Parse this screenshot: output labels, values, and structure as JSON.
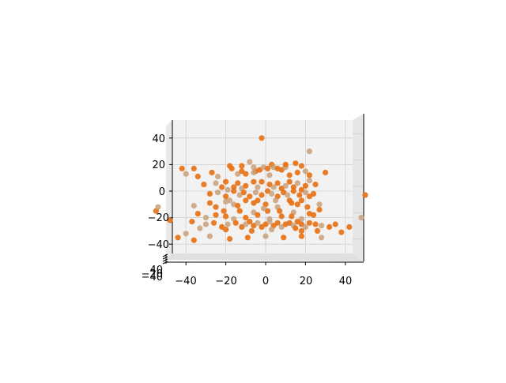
{
  "chart_data": {
    "type": "scatter",
    "projection": "3d",
    "title": "",
    "xlabel": "",
    "ylabel": "",
    "zlabel": "",
    "xlim": [
      -50,
      50
    ],
    "zlim": [
      -50,
      50
    ],
    "x_ticks": [
      "−40",
      "−20",
      "0",
      "20",
      "40"
    ],
    "z_ticks": [
      "−40",
      "−20",
      "0",
      "20",
      "40"
    ],
    "y_ticks_visible": [
      "−40",
      "−20",
      "40"
    ],
    "grid": true,
    "legend": "none",
    "colors": {
      "marker": "#e8751a",
      "marker_faded": "#c8a07a",
      "pane": "#f2f2f2",
      "grid": "#d0d0d0"
    },
    "points": [
      [
        -2,
        40
      ],
      [
        22,
        30
      ],
      [
        30,
        14
      ],
      [
        -42,
        17
      ],
      [
        -40,
        13
      ],
      [
        -36,
        17
      ],
      [
        -34,
        11
      ],
      [
        -24,
        11
      ],
      [
        -18,
        19
      ],
      [
        -17,
        17
      ],
      [
        -8,
        22
      ],
      [
        -5,
        15
      ],
      [
        -3,
        16
      ],
      [
        -1,
        18
      ],
      [
        1,
        17
      ],
      [
        3,
        20
      ],
      [
        4,
        18
      ],
      [
        6,
        17
      ],
      [
        8,
        16
      ],
      [
        10,
        18
      ],
      [
        15,
        21
      ],
      [
        18,
        19
      ],
      [
        -14,
        13
      ],
      [
        -12,
        15
      ],
      [
        -10,
        13
      ],
      [
        -6,
        14
      ],
      [
        12,
        12
      ],
      [
        16,
        14
      ],
      [
        20,
        15
      ],
      [
        22,
        12
      ],
      [
        -31,
        5
      ],
      [
        -25,
        6
      ],
      [
        -22,
        3
      ],
      [
        -20,
        7
      ],
      [
        -19,
        1
      ],
      [
        -16,
        3
      ],
      [
        -14,
        6
      ],
      [
        -12,
        2
      ],
      [
        -10,
        4
      ],
      [
        -6,
        7
      ],
      [
        -4,
        3
      ],
      [
        -2,
        7
      ],
      [
        2,
        5
      ],
      [
        4,
        3
      ],
      [
        6,
        6
      ],
      [
        8,
        2
      ],
      [
        10,
        4
      ],
      [
        12,
        7
      ],
      [
        14,
        3
      ],
      [
        16,
        6
      ],
      [
        18,
        1
      ],
      [
        20,
        4
      ],
      [
        22,
        8
      ],
      [
        25,
        5
      ],
      [
        -28,
        -2
      ],
      [
        -24,
        -1
      ],
      [
        -20,
        -4
      ],
      [
        -16,
        0
      ],
      [
        -13,
        -3
      ],
      [
        -11,
        -1
      ],
      [
        -8,
        -4
      ],
      [
        -5,
        -1
      ],
      [
        -2,
        -3
      ],
      [
        1,
        0
      ],
      [
        3,
        -2
      ],
      [
        6,
        -4
      ],
      [
        9,
        -1
      ],
      [
        11,
        -3
      ],
      [
        14,
        0
      ],
      [
        17,
        -3
      ],
      [
        20,
        -1
      ],
      [
        22,
        -4
      ],
      [
        24,
        -2
      ],
      [
        -18,
        -7
      ],
      [
        -10,
        -7
      ],
      [
        -4,
        -7
      ],
      [
        5,
        -7
      ],
      [
        12,
        -7
      ],
      [
        18,
        -7
      ],
      [
        -16,
        -10
      ],
      [
        0,
        -10
      ],
      [
        16,
        -10
      ],
      [
        -36,
        -11
      ],
      [
        -28,
        -9
      ],
      [
        -25,
        -12
      ],
      [
        -20,
        -8
      ],
      [
        -14,
        -11
      ],
      [
        -6,
        -9
      ],
      [
        6,
        -12
      ],
      [
        13,
        -9
      ],
      [
        21,
        -12
      ],
      [
        27,
        -10
      ],
      [
        -21,
        -15
      ],
      [
        -13,
        -15
      ],
      [
        -6,
        -16
      ],
      [
        1,
        -15
      ],
      [
        7,
        -15
      ],
      [
        14,
        -16
      ],
      [
        22,
        -17
      ],
      [
        -34,
        -17
      ],
      [
        -30,
        -20
      ],
      [
        -25,
        -18
      ],
      [
        -20,
        -19
      ],
      [
        -16,
        -21
      ],
      [
        -10,
        -20
      ],
      [
        -4,
        -18
      ],
      [
        2,
        -21
      ],
      [
        8,
        -19
      ],
      [
        13,
        -19
      ],
      [
        18,
        -21
      ],
      [
        24,
        -18
      ],
      [
        -37,
        -23
      ],
      [
        -30,
        -25
      ],
      [
        -26,
        -24
      ],
      [
        -22,
        -27
      ],
      [
        -19,
        -25
      ],
      [
        -15,
        -24
      ],
      [
        -12,
        -27
      ],
      [
        -10,
        -25
      ],
      [
        -8,
        -23
      ],
      [
        -6,
        -26
      ],
      [
        -4,
        -24
      ],
      [
        -2,
        -27
      ],
      [
        0,
        -25
      ],
      [
        2,
        -23
      ],
      [
        4,
        -26
      ],
      [
        6,
        -24
      ],
      [
        8,
        -27
      ],
      [
        10,
        -25
      ],
      [
        12,
        -24
      ],
      [
        14,
        -26
      ],
      [
        16,
        -23
      ],
      [
        18,
        -25
      ],
      [
        20,
        -27
      ],
      [
        22,
        -24
      ],
      [
        25,
        -25
      ],
      [
        28,
        -26
      ],
      [
        32,
        -27
      ],
      [
        -48,
        -22
      ],
      [
        -40,
        -32
      ],
      [
        -44,
        -35
      ],
      [
        -36,
        -37
      ],
      [
        -28,
        -34
      ],
      [
        -18,
        -36
      ],
      [
        -9,
        -35
      ],
      [
        0,
        -34
      ],
      [
        9,
        -35
      ],
      [
        18,
        -34
      ],
      [
        28,
        -35
      ],
      [
        38,
        -31
      ],
      [
        42,
        -27
      ],
      [
        48,
        -20
      ],
      [
        50,
        -3
      ],
      [
        -55,
        -15
      ],
      [
        -54,
        -12
      ],
      [
        35,
        -25
      ],
      [
        15,
        -28
      ],
      [
        -33,
        -28
      ],
      [
        -7,
        -30
      ],
      [
        26,
        -30
      ],
      [
        3,
        -29
      ],
      [
        -20,
        -29
      ],
      [
        18,
        -30
      ],
      [
        -1,
        -13
      ],
      [
        -27,
        14
      ],
      [
        27,
        -14
      ],
      [
        -6,
        18
      ],
      [
        10,
        20
      ],
      [
        -12,
        19
      ],
      [
        2,
        12
      ]
    ]
  }
}
